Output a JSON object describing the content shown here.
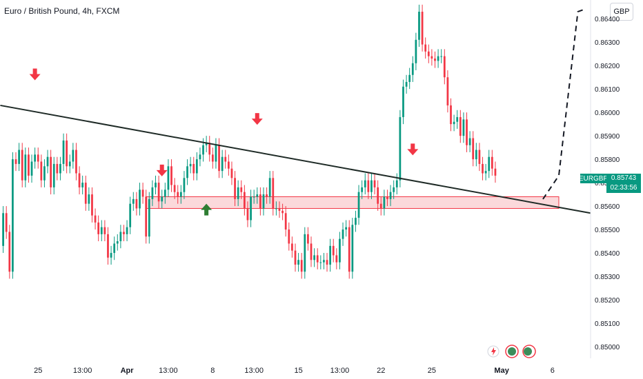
{
  "title": "Euro / British Pound, 4h, FXCM",
  "currency_button": "GBP",
  "symbol": "EURGBP",
  "last_price": "0.85743",
  "countdown": "02:33:56",
  "colors": {
    "up": "#089981",
    "down": "#f23645",
    "zone": "#f7b9be",
    "trend": "#1e2a26",
    "arrow_up": "#2e7d32"
  },
  "icons": [
    "lightning-icon",
    "alert-icon",
    "alert-group-icon"
  ],
  "chart_data": {
    "type": "candlestick",
    "ylim": [
      0.8495,
      0.8648
    ],
    "yticks": [
      0.864,
      0.863,
      0.862,
      0.861,
      0.86,
      0.859,
      0.858,
      0.857,
      0.856,
      0.855,
      0.854,
      0.853,
      0.852,
      0.851,
      0.85
    ],
    "ytick_labels": [
      "0.86400",
      "0.86300",
      "0.86200",
      "0.86100",
      "0.86000",
      "0.85900",
      "0.85800",
      "0.85700",
      "0.85600",
      "0.85500",
      "0.85400",
      "0.85300",
      "0.85200",
      "0.85100",
      "0.85000"
    ],
    "x_range": [
      0,
      186
    ],
    "xticks": [
      {
        "x": 12,
        "label": "25"
      },
      {
        "x": 26,
        "label": "13:00"
      },
      {
        "x": 40,
        "label": "Apr"
      },
      {
        "x": 53,
        "label": "13:00"
      },
      {
        "x": 67,
        "label": "8"
      },
      {
        "x": 80,
        "label": "13:00"
      },
      {
        "x": 94,
        "label": "15"
      },
      {
        "x": 107,
        "label": "13:00"
      },
      {
        "x": 120,
        "label": "22"
      },
      {
        "x": 136,
        "label": "25"
      },
      {
        "x": 158,
        "label": "May"
      },
      {
        "x": 174,
        "label": "6"
      }
    ],
    "candle_closes": [
      0.8543,
      0.8557,
      0.8549,
      0.8532,
      0.858,
      0.8578,
      0.8584,
      0.8571,
      0.8582,
      0.8573,
      0.8579,
      0.8582,
      0.8579,
      0.8571,
      0.8577,
      0.8581,
      0.8568,
      0.8578,
      0.8574,
      0.8578,
      0.8588,
      0.8577,
      0.8579,
      0.8584,
      0.8574,
      0.8568,
      0.857,
      0.8561,
      0.8565,
      0.8556,
      0.8553,
      0.8548,
      0.8551,
      0.8548,
      0.8538,
      0.854,
      0.8544,
      0.8545,
      0.8549,
      0.8548,
      0.8551,
      0.8561,
      0.8563,
      0.8559,
      0.8567,
      0.8564,
      0.8547,
      0.8563,
      0.8568,
      0.857,
      0.8562,
      0.8564,
      0.8567,
      0.8577,
      0.8569,
      0.8566,
      0.8564,
      0.8566,
      0.8572,
      0.8577,
      0.8578,
      0.8574,
      0.858,
      0.8582,
      0.8586,
      0.8587,
      0.8582,
      0.8579,
      0.8586,
      0.8575,
      0.8581,
      0.8579,
      0.8576,
      0.8572,
      0.8563,
      0.8568,
      0.8566,
      0.8559,
      0.8554,
      0.8564,
      0.8564,
      0.8565,
      0.8559,
      0.8565,
      0.8564,
      0.8572,
      0.8559,
      0.8559,
      0.8558,
      0.8557,
      0.855,
      0.8544,
      0.8541,
      0.8535,
      0.8537,
      0.8532,
      0.8548,
      0.8544,
      0.8537,
      0.8539,
      0.8536,
      0.8536,
      0.8537,
      0.8535,
      0.8543,
      0.8539,
      0.8536,
      0.8546,
      0.855,
      0.8551,
      0.8532,
      0.8552,
      0.8555,
      0.8566,
      0.8568,
      0.8571,
      0.8566,
      0.8571,
      0.8568,
      0.8561,
      0.8559,
      0.8564,
      0.8563,
      0.8566,
      0.8568,
      0.8571,
      0.8598,
      0.8611,
      0.8613,
      0.8616,
      0.8621,
      0.8631,
      0.8643,
      0.8629,
      0.8626,
      0.8624,
      0.8623,
      0.8622,
      0.8624,
      0.8624,
      0.8615,
      0.8603,
      0.8595,
      0.8596,
      0.8598,
      0.859,
      0.8597,
      0.8586,
      0.8589,
      0.858,
      0.8584,
      0.8578,
      0.8574,
      0.8575,
      0.8581,
      0.8576,
      0.8573
    ],
    "trendline": [
      [
        0.1,
        0.8603
      ],
      [
        186,
        0.8557
      ]
    ],
    "support_zone": [
      0.8559,
      0.8564
    ],
    "annotations": [
      "down-arrow",
      "down-arrow",
      "down-arrow",
      "down-arrow",
      "up-arrow",
      "dashed-projection"
    ]
  }
}
